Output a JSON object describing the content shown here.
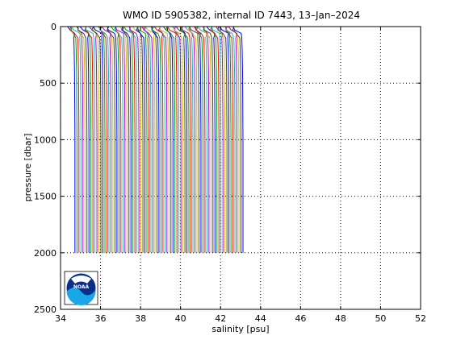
{
  "chart_data": {
    "type": "line",
    "title": "WMO ID 5905382, internal ID 7443, 13–Jan–2024",
    "xlabel": "salinity [psu]",
    "ylabel": "pressure [dbar]",
    "xlim": [
      34,
      52
    ],
    "ylim": [
      0,
      2500
    ],
    "y_reversed": true,
    "grid": true,
    "x_ticks": [
      34,
      36,
      38,
      40,
      42,
      44,
      46,
      48,
      50,
      52
    ],
    "y_ticks": [
      0,
      500,
      1000,
      1500,
      2000,
      2500
    ],
    "profile_offset": 0.1,
    "num_profiles": 85,
    "base_profile": [
      [
        0,
        34.35
      ],
      [
        30,
        34.38
      ],
      [
        60,
        34.6
      ],
      [
        100,
        34.66
      ],
      [
        200,
        34.68
      ],
      [
        400,
        34.7
      ],
      [
        700,
        34.71
      ],
      [
        1000,
        34.72
      ],
      [
        1500,
        34.72
      ],
      [
        2000,
        34.72
      ]
    ],
    "line_colors": [
      "#0000ff",
      "#00a000",
      "#ff0000",
      "#00bfbf",
      "#bf00bf",
      "#bfbf00",
      "#404040"
    ],
    "logo": {
      "label": "NOAA"
    }
  }
}
